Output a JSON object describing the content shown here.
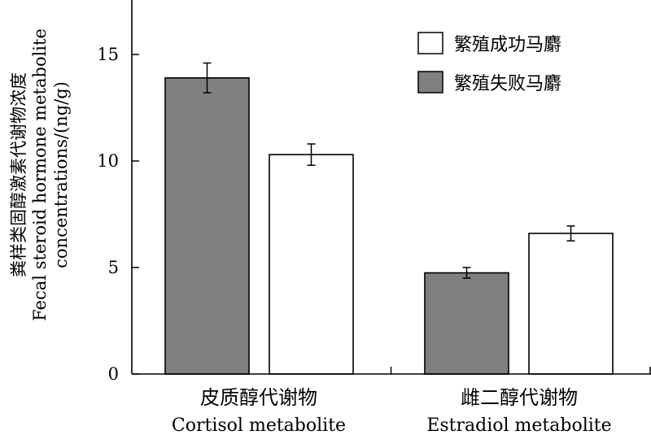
{
  "chart_data": {
    "type": "bar",
    "categories": [
      {
        "cn": "皮质醇代谢物",
        "en": "Cortisol metabolite"
      },
      {
        "cn": "雌二醇代谢物",
        "en": "Estradiol metabolite"
      }
    ],
    "series": [
      {
        "name": "繁殖失败马麝",
        "color": "#808080",
        "values": [
          13.9,
          4.75
        ],
        "errors": [
          0.7,
          0.25
        ]
      },
      {
        "name": "繁殖成功马麝",
        "color": "#ffffff",
        "values": [
          10.3,
          6.6
        ],
        "errors": [
          0.5,
          0.35
        ]
      }
    ],
    "legend": {
      "position": "top-right",
      "items": [
        {
          "label": "繁殖成功马麝",
          "color": "#ffffff"
        },
        {
          "label": "繁殖失败马麝",
          "color": "#808080"
        }
      ]
    },
    "ylabel_cn": "粪样类固醇激素代谢物浓度",
    "ylabel_en_1": "Fecal steroid hormone metabolite",
    "ylabel_en_2": "concentrations/(ng/g)",
    "ylim": [
      0,
      17.5
    ],
    "yticks": [
      "0",
      "5",
      "10",
      "15"
    ],
    "grid": false
  }
}
